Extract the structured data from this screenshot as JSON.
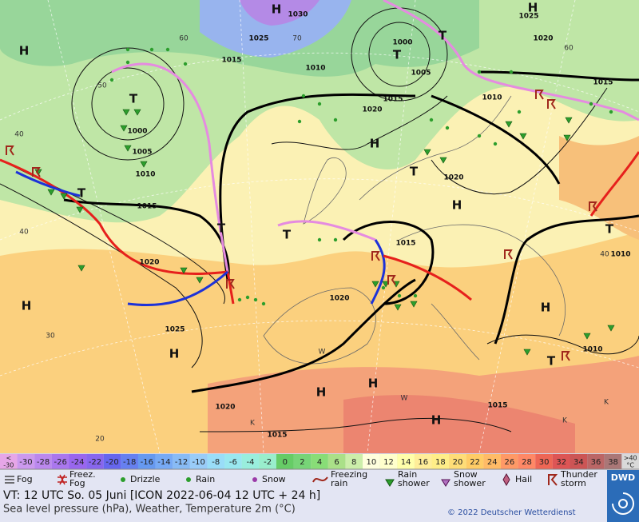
{
  "map": {
    "isobar_labels": [
      "1030",
      "1025",
      "1015",
      "1010",
      "1000",
      "1005",
      "1020",
      "1015",
      "1025",
      "1020",
      "1015",
      "1010",
      "1000",
      "1005",
      "1010",
      "1015",
      "1020",
      "1025",
      "1020",
      "1015",
      "1020",
      "1010",
      "1015",
      "1020",
      "1015",
      "1010"
    ],
    "pressure_centers": [
      "H",
      "H",
      "T",
      "T",
      "T",
      "H",
      "H",
      "T",
      "H",
      "T",
      "T",
      "T",
      "H",
      "H",
      "H",
      "T",
      "T",
      "H",
      "H",
      "H"
    ],
    "temperature_labels": [
      "60",
      "50",
      "40",
      "40",
      "30",
      "20",
      "70",
      "60",
      "40",
      "W",
      "W",
      "K",
      "K",
      "K"
    ]
  },
  "scale": {
    "low_marker": "<",
    "low": "-30",
    "high": ">40",
    "unit": "°C",
    "cells": [
      {
        "label": "-30",
        "color": "#cc99ee"
      },
      {
        "label": "-28",
        "color": "#bb88ee"
      },
      {
        "label": "-26",
        "color": "#aa77ee"
      },
      {
        "label": "-24",
        "color": "#9966ee"
      },
      {
        "label": "-22",
        "color": "#8866ee"
      },
      {
        "label": "-20",
        "color": "#6666ee"
      },
      {
        "label": "-18",
        "color": "#6680f0"
      },
      {
        "label": "-16",
        "color": "#6699f0"
      },
      {
        "label": "-14",
        "color": "#77aaf5"
      },
      {
        "label": "-12",
        "color": "#88bbf5"
      },
      {
        "label": "-10",
        "color": "#99ccf8"
      },
      {
        "label": "-8",
        "color": "#99ddf8"
      },
      {
        "label": "-6",
        "color": "#99e8f0"
      },
      {
        "label": "-4",
        "color": "#99eedd"
      },
      {
        "label": "-2",
        "color": "#99eecc"
      },
      {
        "label": "0",
        "color": "#66cc66"
      },
      {
        "label": "2",
        "color": "#77d477"
      },
      {
        "label": "4",
        "color": "#88dd77"
      },
      {
        "label": "6",
        "color": "#aae088"
      },
      {
        "label": "8",
        "color": "#cceeaa"
      },
      {
        "label": "10",
        "color": "#ffffdd"
      },
      {
        "label": "12",
        "color": "#ffffcc"
      },
      {
        "label": "14",
        "color": "#ffffaa"
      },
      {
        "label": "16",
        "color": "#ffee99"
      },
      {
        "label": "18",
        "color": "#ffee88"
      },
      {
        "label": "20",
        "color": "#ffdd77"
      },
      {
        "label": "22",
        "color": "#ffcc66"
      },
      {
        "label": "24",
        "color": "#ffbb66"
      },
      {
        "label": "26",
        "color": "#ff9966"
      },
      {
        "label": "28",
        "color": "#ff8866"
      },
      {
        "label": "30",
        "color": "#ee6655"
      },
      {
        "label": "32",
        "color": "#dd5555"
      },
      {
        "label": "34",
        "color": "#cc5555"
      },
      {
        "label": "36",
        "color": "#bb6666"
      },
      {
        "label": "38",
        "color": "#aa7777"
      }
    ]
  },
  "legend": [
    [
      "Fog"
    ],
    [
      "Freez.",
      "Fog"
    ],
    [
      "Drizzle"
    ],
    [
      "Rain"
    ],
    [
      "Snow"
    ],
    [
      "Freezing",
      "rain"
    ],
    [
      "Rain",
      "shower"
    ],
    [
      "Snow",
      "shower"
    ],
    [
      "Hail"
    ],
    [
      "Thunder",
      "storm"
    ]
  ],
  "footer": {
    "valid_time": "VT: 12 UTC So.  05 Juni [ICON 2022-06-04  12 UTC + 24 h]",
    "description": "Sea level pressure (hPa), Weather, Temperature 2m (°C)",
    "copyright": "© 2022 Deutscher Wetterdienst",
    "logo": "DWD"
  }
}
